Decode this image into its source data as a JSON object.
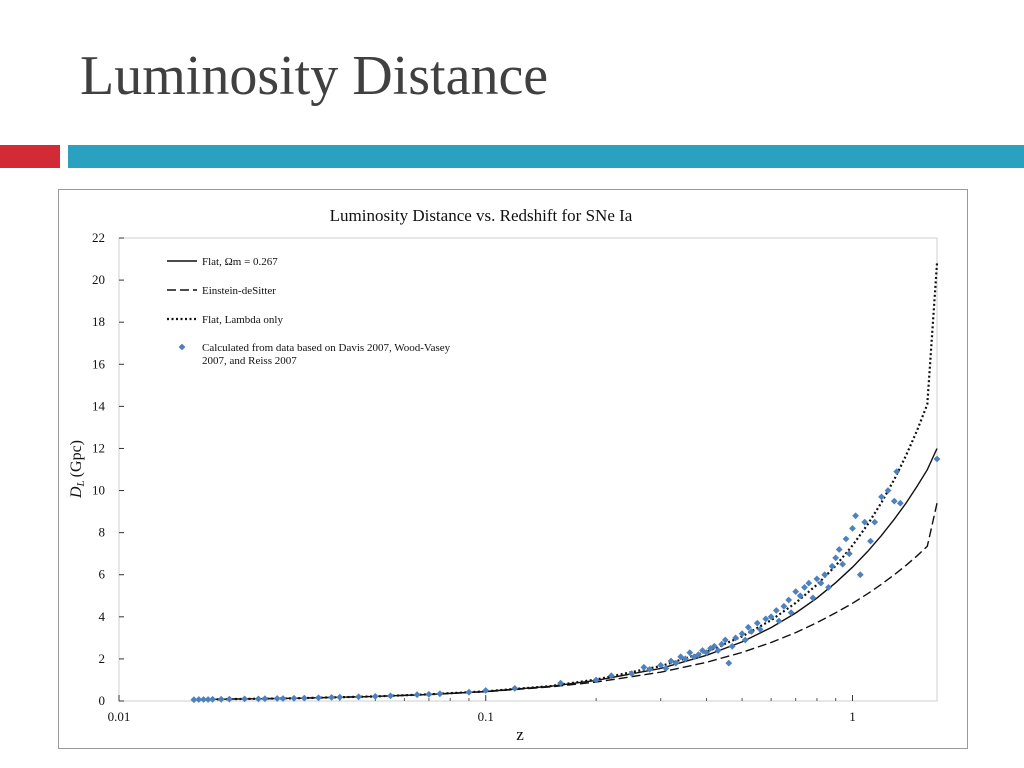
{
  "slide": {
    "title": "Luminosity Distance"
  },
  "colors": {
    "accent_red": "#d32b35",
    "accent_blue": "#2ba1c0",
    "points": "#4f81bd"
  },
  "chart_data": {
    "type": "scatter",
    "title": "Luminosity Distance vs. Redshift for SNe Ia",
    "xlabel": "z",
    "ylabel_main": "D",
    "ylabel_sub": "L",
    "ylabel_unit": "(Gpc)",
    "x_scale": "log",
    "xlim": [
      0.01,
      1.7
    ],
    "ylim": [
      0,
      22
    ],
    "x_ticks": [
      0.01,
      0.1,
      1
    ],
    "x_tick_labels": [
      "0.01",
      "0.1",
      "1"
    ],
    "y_ticks": [
      0,
      2,
      4,
      6,
      8,
      10,
      12,
      14,
      16,
      18,
      20,
      22
    ],
    "y_tick_labels": [
      "0",
      "2",
      "4",
      "6",
      "8",
      "10",
      "12",
      "14",
      "16",
      "18",
      "20",
      "22"
    ],
    "legend_position": "top-left",
    "legend": [
      {
        "style": "solid",
        "label_pre": "Flat, Ωm = 0.267",
        "label_line2": ""
      },
      {
        "style": "dashed",
        "label_pre": "Einstein-deSitter",
        "label_line2": ""
      },
      {
        "style": "dotted",
        "label_pre": "Flat, Lambda only",
        "label_line2": ""
      },
      {
        "style": "marker",
        "label_pre": "Calculated from data based on Davis 2007, Wood-Vasey",
        "label_line2": "2007, and Reiss 2007"
      }
    ],
    "series": [
      {
        "name": "Flat, Ωm = 0.267",
        "style": "solid",
        "x": [
          0.017,
          0.02,
          0.03,
          0.05,
          0.07,
          0.1,
          0.15,
          0.2,
          0.3,
          0.4,
          0.5,
          0.6,
          0.7,
          0.8,
          0.9,
          1.0,
          1.1,
          1.2,
          1.3,
          1.4,
          1.5,
          1.6,
          1.7
        ],
        "y": [
          0.07,
          0.09,
          0.13,
          0.22,
          0.31,
          0.45,
          0.7,
          0.98,
          1.55,
          2.17,
          2.81,
          3.49,
          4.18,
          4.89,
          5.62,
          6.36,
          7.11,
          7.87,
          8.64,
          9.41,
          10.2,
          10.99,
          12.0
        ]
      },
      {
        "name": "Einstein-deSitter",
        "style": "dashed",
        "x": [
          0.017,
          0.02,
          0.03,
          0.05,
          0.07,
          0.1,
          0.15,
          0.2,
          0.3,
          0.4,
          0.5,
          0.6,
          0.7,
          0.8,
          0.9,
          1.0,
          1.1,
          1.2,
          1.3,
          1.4,
          1.5,
          1.6,
          1.7
        ],
        "y": [
          0.07,
          0.09,
          0.13,
          0.22,
          0.31,
          0.44,
          0.67,
          0.9,
          1.37,
          1.84,
          2.31,
          2.78,
          3.25,
          3.72,
          4.19,
          4.64,
          5.1,
          5.55,
          6.0,
          6.45,
          6.9,
          7.35,
          9.4
        ]
      },
      {
        "name": "Flat, Lambda only",
        "style": "dotted",
        "x": [
          0.017,
          0.02,
          0.03,
          0.05,
          0.07,
          0.1,
          0.15,
          0.2,
          0.3,
          0.4,
          0.5,
          0.6,
          0.7,
          0.8,
          0.9,
          1.0,
          1.1,
          1.2,
          1.3,
          1.4,
          1.5,
          1.6,
          1.7
        ],
        "y": [
          0.07,
          0.09,
          0.13,
          0.22,
          0.32,
          0.46,
          0.71,
          1.02,
          1.66,
          2.34,
          3.07,
          3.84,
          4.66,
          5.52,
          6.43,
          7.39,
          8.39,
          9.43,
          10.53,
          11.67,
          12.86,
          14.1,
          20.8
        ]
      },
      {
        "name": "Calculated from data based on Davis 2007, Wood-Vasey 2007, and Reiss 2007",
        "style": "marker",
        "points": [
          [
            0.016,
            0.06
          ],
          [
            0.0165,
            0.07
          ],
          [
            0.017,
            0.07
          ],
          [
            0.0175,
            0.07
          ],
          [
            0.018,
            0.08
          ],
          [
            0.019,
            0.08
          ],
          [
            0.02,
            0.09
          ],
          [
            0.022,
            0.1
          ],
          [
            0.024,
            0.1
          ],
          [
            0.025,
            0.11
          ],
          [
            0.027,
            0.12
          ],
          [
            0.028,
            0.12
          ],
          [
            0.03,
            0.13
          ],
          [
            0.032,
            0.14
          ],
          [
            0.035,
            0.15
          ],
          [
            0.038,
            0.17
          ],
          [
            0.04,
            0.18
          ],
          [
            0.045,
            0.2
          ],
          [
            0.05,
            0.22
          ],
          [
            0.055,
            0.24
          ],
          [
            0.065,
            0.3
          ],
          [
            0.07,
            0.32
          ],
          [
            0.075,
            0.34
          ],
          [
            0.09,
            0.42
          ],
          [
            0.1,
            0.5
          ],
          [
            0.12,
            0.6
          ],
          [
            0.16,
            0.85
          ],
          [
            0.2,
            1.0
          ],
          [
            0.22,
            1.2
          ],
          [
            0.25,
            1.3
          ],
          [
            0.27,
            1.6
          ],
          [
            0.28,
            1.5
          ],
          [
            0.3,
            1.7
          ],
          [
            0.31,
            1.55
          ],
          [
            0.32,
            1.9
          ],
          [
            0.33,
            1.8
          ],
          [
            0.34,
            2.1
          ],
          [
            0.35,
            2.0
          ],
          [
            0.36,
            2.3
          ],
          [
            0.37,
            2.1
          ],
          [
            0.38,
            2.2
          ],
          [
            0.39,
            2.4
          ],
          [
            0.4,
            2.3
          ],
          [
            0.41,
            2.5
          ],
          [
            0.42,
            2.6
          ],
          [
            0.43,
            2.4
          ],
          [
            0.44,
            2.7
          ],
          [
            0.45,
            2.9
          ],
          [
            0.46,
            1.8
          ],
          [
            0.47,
            2.6
          ],
          [
            0.48,
            3.0
          ],
          [
            0.5,
            3.2
          ],
          [
            0.51,
            2.9
          ],
          [
            0.52,
            3.5
          ],
          [
            0.53,
            3.3
          ],
          [
            0.55,
            3.7
          ],
          [
            0.56,
            3.4
          ],
          [
            0.58,
            3.9
          ],
          [
            0.6,
            4.0
          ],
          [
            0.62,
            4.3
          ],
          [
            0.63,
            3.8
          ],
          [
            0.65,
            4.5
          ],
          [
            0.67,
            4.8
          ],
          [
            0.68,
            4.2
          ],
          [
            0.7,
            5.2
          ],
          [
            0.72,
            5.0
          ],
          [
            0.74,
            5.4
          ],
          [
            0.76,
            5.6
          ],
          [
            0.78,
            4.9
          ],
          [
            0.8,
            5.8
          ],
          [
            0.82,
            5.6
          ],
          [
            0.84,
            6.0
          ],
          [
            0.86,
            5.4
          ],
          [
            0.88,
            6.4
          ],
          [
            0.9,
            6.8
          ],
          [
            0.92,
            7.2
          ],
          [
            0.94,
            6.5
          ],
          [
            0.96,
            7.7
          ],
          [
            0.98,
            7.0
          ],
          [
            1.0,
            8.2
          ],
          [
            1.02,
            8.8
          ],
          [
            1.05,
            6.0
          ],
          [
            1.08,
            8.5
          ],
          [
            1.12,
            7.6
          ],
          [
            1.15,
            8.5
          ],
          [
            1.2,
            9.7
          ],
          [
            1.25,
            10.0
          ],
          [
            1.3,
            9.5
          ],
          [
            1.32,
            10.9
          ],
          [
            1.35,
            9.4
          ],
          [
            1.7,
            11.5
          ]
        ]
      }
    ]
  }
}
